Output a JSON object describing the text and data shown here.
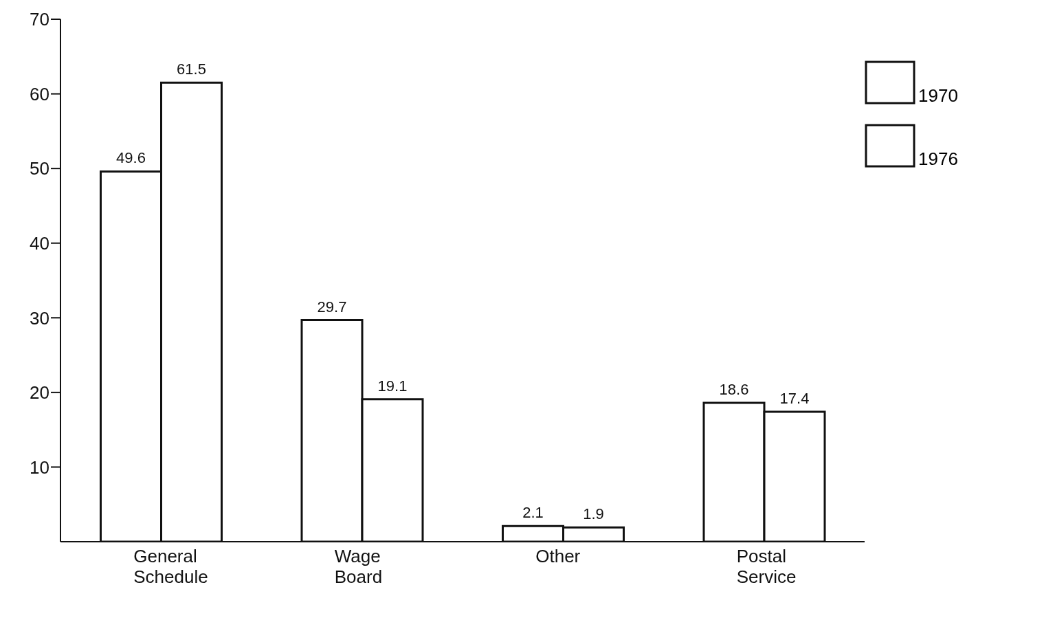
{
  "chart_data": {
    "type": "bar",
    "categories": [
      "General Schedule",
      "Wage Board",
      "Other",
      "Postal Service"
    ],
    "series": [
      {
        "name": "1970",
        "color": "#ffffff",
        "values": [
          49.6,
          29.7,
          2.1,
          18.6
        ]
      },
      {
        "name": "1976",
        "color": "#ffffff",
        "values": [
          61.5,
          19.1,
          1.9,
          17.4
        ]
      }
    ],
    "ylim": [
      0,
      70
    ],
    "yticks": [
      10,
      20,
      30,
      40,
      50,
      60,
      70
    ],
    "grid": false,
    "legend": "top right",
    "data_labels": true
  }
}
